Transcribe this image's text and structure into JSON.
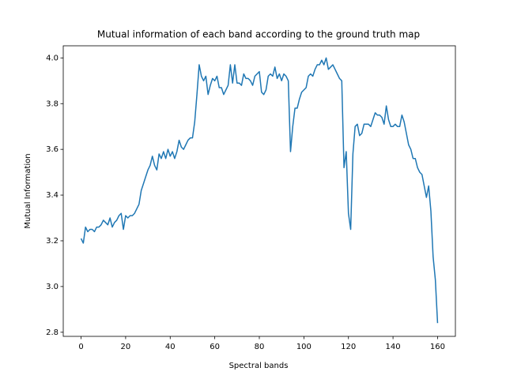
{
  "chart_data": {
    "type": "line",
    "title": "Mutual information of each band according to the ground truth map",
    "x_label": "Spectral bands",
    "y_label": "Mutual Information",
    "x": [
      0,
      1,
      2,
      3,
      4,
      5,
      6,
      7,
      8,
      9,
      10,
      11,
      12,
      13,
      14,
      15,
      16,
      17,
      18,
      19,
      20,
      21,
      22,
      23,
      24,
      25,
      26,
      27,
      28,
      29,
      30,
      31,
      32,
      33,
      34,
      35,
      36,
      37,
      38,
      39,
      40,
      41,
      42,
      43,
      44,
      45,
      46,
      47,
      48,
      49,
      50,
      51,
      52,
      53,
      54,
      55,
      56,
      57,
      58,
      59,
      60,
      61,
      62,
      63,
      64,
      65,
      66,
      67,
      68,
      69,
      70,
      71,
      72,
      73,
      74,
      75,
      76,
      77,
      78,
      79,
      80,
      81,
      82,
      83,
      84,
      85,
      86,
      87,
      88,
      89,
      90,
      91,
      92,
      93,
      94,
      95,
      96,
      97,
      98,
      99,
      100,
      101,
      102,
      103,
      104,
      105,
      106,
      107,
      108,
      109,
      110,
      111,
      112,
      113,
      114,
      115,
      116,
      117,
      118,
      119,
      120,
      121,
      122,
      123,
      124,
      125,
      126,
      127,
      128,
      129,
      130,
      131,
      132,
      133,
      134,
      135,
      136,
      137,
      138,
      139,
      140,
      141,
      142,
      143,
      144,
      145,
      146,
      147,
      148,
      149,
      150,
      151,
      152,
      153,
      154,
      155,
      156,
      157,
      158,
      159,
      160
    ],
    "series": [
      {
        "color": "#1f77b4",
        "values": [
          3.21,
          3.19,
          3.26,
          3.24,
          3.25,
          3.25,
          3.24,
          3.26,
          3.26,
          3.27,
          3.29,
          3.28,
          3.27,
          3.3,
          3.26,
          3.28,
          3.29,
          3.31,
          3.32,
          3.25,
          3.31,
          3.3,
          3.31,
          3.31,
          3.32,
          3.34,
          3.36,
          3.42,
          3.45,
          3.48,
          3.51,
          3.53,
          3.57,
          3.53,
          3.51,
          3.58,
          3.56,
          3.59,
          3.56,
          3.6,
          3.57,
          3.59,
          3.56,
          3.59,
          3.64,
          3.61,
          3.6,
          3.62,
          3.64,
          3.65,
          3.65,
          3.72,
          3.84,
          3.97,
          3.92,
          3.9,
          3.92,
          3.84,
          3.88,
          3.91,
          3.9,
          3.92,
          3.87,
          3.87,
          3.84,
          3.86,
          3.88,
          3.97,
          3.89,
          3.97,
          3.89,
          3.89,
          3.88,
          3.93,
          3.91,
          3.91,
          3.9,
          3.88,
          3.92,
          3.93,
          3.94,
          3.85,
          3.84,
          3.86,
          3.92,
          3.93,
          3.92,
          3.96,
          3.91,
          3.93,
          3.9,
          3.93,
          3.92,
          3.9,
          3.59,
          3.7,
          3.78,
          3.78,
          3.82,
          3.85,
          3.86,
          3.87,
          3.92,
          3.93,
          3.92,
          3.95,
          3.97,
          3.97,
          3.99,
          3.97,
          4.0,
          3.95,
          3.96,
          3.97,
          3.95,
          3.93,
          3.91,
          3.9,
          3.52,
          3.59,
          3.32,
          3.25,
          3.58,
          3.7,
          3.71,
          3.66,
          3.67,
          3.71,
          3.71,
          3.71,
          3.7,
          3.73,
          3.76,
          3.75,
          3.75,
          3.74,
          3.71,
          3.79,
          3.73,
          3.7,
          3.7,
          3.71,
          3.7,
          3.7,
          3.75,
          3.72,
          3.67,
          3.62,
          3.6,
          3.56,
          3.56,
          3.52,
          3.5,
          3.49,
          3.44,
          3.39,
          3.44,
          3.33,
          3.13,
          3.03,
          2.84
        ]
      }
    ],
    "xlim": [
      -8,
      168
    ],
    "ylim": [
      2.782,
      4.053
    ],
    "xticks": [
      0,
      20,
      40,
      60,
      80,
      100,
      120,
      140,
      160
    ],
    "yticks": [
      2.8,
      {
        "value": 3.0,
        "label": "3.0"
      },
      3.2,
      3.4,
      3.6,
      3.8,
      {
        "value": 4.0,
        "label": "4.0"
      }
    ]
  }
}
